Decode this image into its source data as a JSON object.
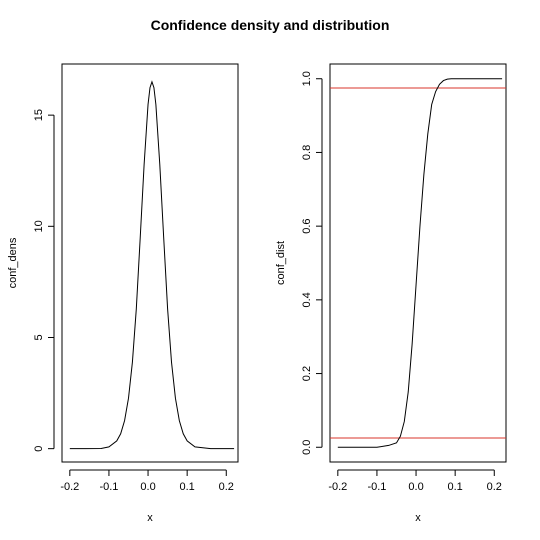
{
  "title": "Confidence density and distribution",
  "colors": {
    "curve": "#000000",
    "reference_lines": "#d9352b",
    "background": "#ffffff"
  },
  "chart_data": [
    {
      "type": "line",
      "id": "left",
      "xlabel": "x",
      "ylabel": "conf_dens",
      "xlim": [
        -0.22,
        0.23
      ],
      "ylim": [
        -0.6,
        17.3
      ],
      "xticks": [
        -0.2,
        -0.1,
        0.0,
        0.1,
        0.2
      ],
      "xtick_labels": [
        "-0.2",
        "-0.1",
        "0.0",
        "0.1",
        "0.2"
      ],
      "yticks": [
        0,
        5,
        10,
        15
      ],
      "ytick_labels": [
        "0",
        "5",
        "10",
        "15"
      ],
      "series": [
        {
          "x": [
            -0.2,
            -0.16,
            -0.12,
            -0.1,
            -0.08,
            -0.07,
            -0.06,
            -0.05,
            -0.04,
            -0.03,
            -0.02,
            -0.01,
            0.0,
            0.005,
            0.01,
            0.015,
            0.02,
            0.03,
            0.04,
            0.05,
            0.06,
            0.07,
            0.08,
            0.09,
            0.1,
            0.12,
            0.16,
            0.22
          ],
          "y": [
            0.0,
            0.0,
            0.01,
            0.08,
            0.35,
            0.67,
            1.26,
            2.27,
            3.89,
            6.29,
            9.49,
            12.79,
            15.48,
            16.24,
            16.5,
            16.24,
            15.48,
            12.79,
            9.49,
            6.29,
            3.89,
            2.27,
            1.26,
            0.67,
            0.35,
            0.08,
            0.0,
            0.0
          ]
        }
      ]
    },
    {
      "type": "line",
      "id": "right",
      "xlabel": "x",
      "ylabel": "conf_dist",
      "xlim": [
        -0.22,
        0.23
      ],
      "ylim": [
        -0.04,
        1.04
      ],
      "xticks": [
        -0.2,
        -0.1,
        0.0,
        0.1,
        0.2
      ],
      "xtick_labels": [
        "-0.2",
        "-0.1",
        "0.0",
        "0.1",
        "0.2"
      ],
      "yticks": [
        0.0,
        0.2,
        0.4,
        0.6,
        0.8,
        1.0
      ],
      "ytick_labels": [
        "0.0",
        "0.2",
        "0.4",
        "0.6",
        "0.8",
        "1.0"
      ],
      "hlines": [
        0.025,
        0.975
      ],
      "series": [
        {
          "x": [
            -0.2,
            -0.1,
            -0.07,
            -0.05,
            -0.04,
            -0.03,
            -0.02,
            -0.01,
            0.0,
            0.01,
            0.02,
            0.03,
            0.04,
            0.05,
            0.06,
            0.07,
            0.08,
            0.09,
            0.1,
            0.22
          ],
          "y": [
            0.0,
            0.0,
            0.005,
            0.012,
            0.03,
            0.07,
            0.15,
            0.28,
            0.44,
            0.6,
            0.74,
            0.85,
            0.93,
            0.965,
            0.985,
            0.995,
            0.999,
            1.0,
            1.0,
            1.0
          ]
        }
      ]
    }
  ]
}
